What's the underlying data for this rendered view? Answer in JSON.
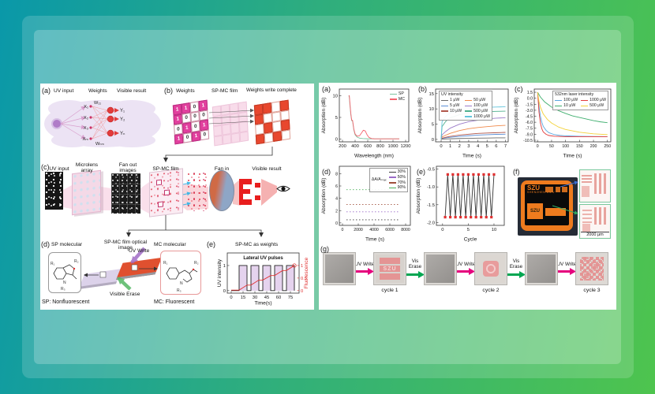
{
  "colors": {
    "bg_left": "#0a98a9",
    "bg_right": "#4ec44e",
    "uv_write_arrow": "#e5007d",
    "vis_erase_arrow": "#00a651",
    "weights_magenta": "#e2409e",
    "written_red": "#e8472e",
    "film_pink": "#f8dcea",
    "marker_red": "#e03131",
    "device_orange": "#ee7b1e"
  },
  "left_figure": {
    "a": {
      "tag": "(a)",
      "cols": [
        "UV input",
        "Weights",
        "Visible result"
      ],
      "inputs": [
        "X₁",
        "X₂",
        "X₃",
        "Xₘ"
      ],
      "outputs": [
        "Y₁",
        "Y₂",
        "Yₙ"
      ],
      "w_top": "W₁₁",
      "w_bottom": "Wₙₘ"
    },
    "b": {
      "tag": "(b)",
      "labels": [
        "Weights",
        "SP-MC film",
        "Weights write complete"
      ],
      "matrix": [
        [
          1,
          1,
          0,
          1
        ],
        [
          1,
          0,
          0,
          0
        ],
        [
          0,
          1,
          0,
          1
        ],
        [
          1,
          0,
          1,
          0
        ]
      ]
    },
    "c": {
      "tag": "(c)",
      "labels": [
        "UV input",
        "Microlens array",
        "Fan out images",
        "SP-MC film",
        "Fan in",
        "Visible result"
      ]
    },
    "d": {
      "tag": "(d)",
      "sp_label": "SP molecular",
      "film_label": "SP-MC film optical image",
      "mc_label": "MC molecular",
      "uv_write": "UV Write",
      "vis_erase": "Visible Erase",
      "note_sp": "SP: Nonfluorescent",
      "note_mc": "MC: Fluorescent",
      "r_sp": [
        "R₁",
        "R₂",
        "R₃"
      ],
      "r_mc": [
        "R₁",
        "R₂",
        "R₃"
      ],
      "atom_n": "N",
      "atom_o": "O"
    },
    "e": {
      "tag": "(e)",
      "title": "SP-MC as weights"
    }
  },
  "right_figure": {
    "a": {
      "tag": "(a)"
    },
    "b": {
      "tag": "(b)"
    },
    "c": {
      "tag": "(c)"
    },
    "d": {
      "tag": "(d)"
    },
    "e": {
      "tag": "(e)"
    },
    "f": {
      "tag": "(f)",
      "device_label": "SZU",
      "device_label2": "SZU",
      "scale_label": "2000 μm"
    },
    "g": {
      "tag": "(g)",
      "arrow_uv_label": "UV Write",
      "arrow_erase_label": "Vis Erase",
      "colors": {
        "uv": "#e5007d",
        "erase": "#00a651"
      },
      "steps": [
        {
          "kind": "square",
          "variant": "blank"
        },
        {
          "kind": "arrow",
          "type": "uv"
        },
        {
          "kind": "square",
          "variant": "szu",
          "text": "SZU",
          "caption": "cycle 1"
        },
        {
          "kind": "arrow",
          "type": "erase"
        },
        {
          "kind": "square",
          "variant": "blank"
        },
        {
          "kind": "arrow",
          "type": "uv"
        },
        {
          "kind": "square",
          "variant": "logo",
          "caption": "cycle 2"
        },
        {
          "kind": "arrow",
          "type": "erase"
        },
        {
          "kind": "square",
          "variant": "blank"
        },
        {
          "kind": "arrow",
          "type": "uv"
        },
        {
          "kind": "square",
          "variant": "qr",
          "caption": "cycle 3"
        }
      ]
    }
  },
  "chart_data": [
    {
      "id": "ra",
      "type": "line",
      "title": "",
      "xlabel": "Wavelength (nm)",
      "ylabel": "Absorption (dB)",
      "xlim": [
        150,
        1250
      ],
      "ylim": [
        -0.6,
        11.5
      ],
      "xticks": [
        200,
        400,
        600,
        800,
        1000,
        1200
      ],
      "yticks": [
        0,
        5,
        10
      ],
      "m": {
        "l": 24,
        "r": 4,
        "t": 6,
        "b": 21
      },
      "legend": {
        "pos": "tr",
        "cols": 1,
        "entries": [
          "SP",
          "MC"
        ],
        "box": false
      },
      "series": [
        {
          "name": "SP",
          "color": "#7cc4a0",
          "x": [
            300,
            308,
            318,
            332,
            345,
            360,
            380,
            400,
            430,
            470,
            520,
            600,
            700,
            800,
            900,
            1000,
            1100
          ],
          "y": [
            10,
            9.6,
            7.8,
            5.6,
            4.3,
            4.1,
            2.1,
            1.0,
            0.5,
            0.25,
            0.15,
            0.1,
            0.08,
            0.08,
            0.08,
            0.08,
            0.08
          ]
        },
        {
          "name": "MC",
          "color": "#f4636e",
          "x": [
            300,
            308,
            318,
            332,
            345,
            360,
            380,
            400,
            430,
            470,
            500,
            530,
            560,
            590,
            620,
            660,
            700,
            800,
            900,
            1000,
            1100
          ],
          "y": [
            10,
            10,
            8.2,
            5.9,
            4.4,
            4.3,
            2.3,
            1.2,
            0.7,
            0.8,
            1.4,
            2.05,
            1.9,
            1.0,
            0.4,
            0.15,
            0.1,
            0.08,
            0.08,
            0.08,
            0.08
          ]
        }
      ]
    },
    {
      "id": "rb",
      "type": "line",
      "title": "",
      "xlabel": "Time (s)",
      "ylabel": "Absorption (dB)",
      "xlim": [
        -0.6,
        7.3
      ],
      "ylim": [
        -0.8,
        16.5
      ],
      "xticks": [
        0,
        1,
        2,
        3,
        4,
        5,
        6,
        7
      ],
      "yticks": [
        0,
        5,
        10,
        15
      ],
      "m": {
        "l": 24,
        "r": 4,
        "t": 6,
        "b": 21
      },
      "legend": {
        "pos": "tl",
        "cols": 2,
        "title": "UV intensity",
        "box": true,
        "entries": [
          "1 μW",
          "50 μW",
          "5 μW",
          "100 μW",
          "10 μW",
          "500 μW",
          "",
          "1000 μW"
        ]
      },
      "series": [
        {
          "name": "1 μW",
          "color": "#6b6b6b",
          "x": [
            0,
            0.1,
            0.5,
            1,
            2,
            3,
            4,
            5,
            6,
            7
          ],
          "y": [
            0,
            0.1,
            0.15,
            0.2,
            0.3,
            0.35,
            0.4,
            0.45,
            0.5,
            0.5
          ]
        },
        {
          "name": "5 μW",
          "color": "#5b8fd6",
          "x": [
            0,
            0.1,
            0.5,
            1,
            2,
            3,
            4,
            5,
            6,
            7
          ],
          "y": [
            0,
            0.3,
            0.5,
            0.7,
            1.0,
            1.2,
            1.4,
            1.55,
            1.65,
            1.7
          ]
        },
        {
          "name": "10 μW",
          "color": "#b0564a",
          "x": [
            0,
            0.1,
            0.5,
            1,
            2,
            3,
            4,
            5,
            6,
            7
          ],
          "y": [
            0,
            0.4,
            0.7,
            1.0,
            1.4,
            1.7,
            1.95,
            2.1,
            2.2,
            2.3
          ]
        },
        {
          "name": "50 μW",
          "color": "#f08a4b",
          "x": [
            0,
            0.1,
            0.5,
            1,
            2,
            3,
            4,
            5,
            6,
            7
          ],
          "y": [
            0,
            0.8,
            1.4,
            2.0,
            2.9,
            3.5,
            3.9,
            4.2,
            4.45,
            4.6
          ]
        },
        {
          "name": "100 μW",
          "color": "#9b7bc8",
          "x": [
            0,
            0.1,
            0.5,
            1,
            2,
            3,
            4,
            5,
            6,
            7
          ],
          "y": [
            0,
            1.5,
            2.6,
            3.7,
            5.0,
            5.8,
            6.3,
            6.7,
            6.95,
            7.1
          ]
        },
        {
          "name": "500 μW",
          "color": "#4daf8d",
          "x": [
            0,
            0.1,
            0.5,
            1,
            2,
            3,
            4,
            5,
            6,
            7
          ],
          "y": [
            0,
            4.2,
            5.9,
            7.1,
            8.1,
            8.6,
            8.9,
            9.1,
            9.2,
            9.25
          ]
        },
        {
          "name": "1000 μW",
          "color": "#63c5dc",
          "x": [
            0,
            0.1,
            0.5,
            1,
            2,
            3,
            4,
            5,
            6,
            7
          ],
          "y": [
            0,
            5.8,
            7.6,
            8.7,
            9.6,
            10.0,
            10.3,
            10.5,
            10.6,
            10.7
          ]
        }
      ]
    },
    {
      "id": "rc",
      "type": "line",
      "title": "",
      "xlabel": "Time (s)",
      "ylabel": "Absorption (dB)",
      "xlim": [
        -12,
        262
      ],
      "ylim": [
        -10.9,
        2.3
      ],
      "xticks": [
        0,
        50,
        100,
        150,
        200,
        250
      ],
      "yticks": [
        1.5,
        0.0,
        -1.5,
        -3.0,
        -4.5,
        -6.0,
        -7.5,
        -9.0,
        -10.5
      ],
      "ytick_labels": [
        "1.5",
        "0.0",
        "-1.5",
        "-3.0",
        "-4.5",
        "-6.0",
        "-7.5",
        "-9.0",
        "-10.5"
      ],
      "tf": 5.2,
      "m": {
        "l": 27,
        "r": 4,
        "t": 6,
        "b": 21
      },
      "legend": {
        "pos": "tr",
        "cols": 2,
        "title": "532nm laser intensity",
        "box": true,
        "entries": [
          "100 μW",
          "1000 μW",
          "10 μW",
          "500 μW"
        ]
      },
      "series": [
        {
          "name": "100 μW",
          "color": "#5aa7e0",
          "x": [
            0,
            5,
            10,
            15,
            20,
            30,
            40,
            60,
            80,
            100,
            150,
            200,
            250
          ],
          "y": [
            1.5,
            -2.0,
            -4.5,
            -6.0,
            -7.0,
            -8.0,
            -8.6,
            -9.1,
            -9.3,
            -9.4,
            -9.5,
            -9.55,
            -9.6
          ]
        },
        {
          "name": "1000 μW",
          "color": "#e23b3b",
          "x": [
            0,
            5,
            10,
            15,
            20,
            30,
            40,
            60,
            80,
            100,
            150,
            200,
            250
          ],
          "y": [
            1.5,
            -3.5,
            -6.2,
            -7.6,
            -8.4,
            -9.0,
            -9.3,
            -9.5,
            -9.55,
            -9.6,
            -9.6,
            -9.6,
            -9.6
          ]
        },
        {
          "name": "10 μW",
          "color": "#3fae6e",
          "x": [
            0,
            10,
            25,
            50,
            75,
            100,
            125,
            150,
            175,
            200,
            225,
            250
          ],
          "y": [
            1.5,
            0.3,
            -0.9,
            -2.2,
            -3.1,
            -3.8,
            -4.4,
            -4.8,
            -5.2,
            -5.6,
            -5.9,
            -6.1
          ]
        },
        {
          "name": "500 μW",
          "color": "#f3d23a",
          "x": [
            0,
            5,
            10,
            20,
            35,
            50,
            75,
            100,
            150,
            200,
            250
          ],
          "y": [
            1.5,
            -0.8,
            -2.2,
            -3.9,
            -5.3,
            -6.2,
            -7.2,
            -7.8,
            -8.5,
            -8.9,
            -9.1
          ]
        }
      ]
    },
    {
      "id": "rd",
      "type": "line",
      "title": "",
      "xlabel": "Time (s)",
      "ylabel": "Absorption (dB)",
      "xlim": [
        -400,
        8600
      ],
      "ylim": [
        -0.4,
        9.2
      ],
      "xticks": [
        0,
        2000,
        4000,
        6000,
        8000
      ],
      "yticks": [
        0,
        2,
        4,
        6,
        8
      ],
      "tf": 5.2,
      "m": {
        "l": 24,
        "r": 4,
        "t": 6,
        "b": 21
      },
      "legend": {
        "pos": "tr",
        "cols": 1,
        "title": "ΔA/Aₘₐₓ",
        "titleSide": true,
        "box": true,
        "entries": [
          "30%",
          "50%",
          "70%",
          "90%"
        ]
      },
      "series": [
        {
          "name": "30%",
          "color": "#3a3a3a",
          "dash": "1.5,2.5",
          "x": [
            500,
            7200
          ],
          "y": [
            0.5,
            0.5
          ]
        },
        {
          "name": "50%",
          "color": "#9b6bc8",
          "dash": "1.5,2.5",
          "x": [
            500,
            7200
          ],
          "y": [
            1.8,
            1.8
          ]
        },
        {
          "name": "70%",
          "color": "#a0503c",
          "dash": "1.5,2.5",
          "x": [
            500,
            7200
          ],
          "y": [
            3.0,
            3.0
          ]
        },
        {
          "name": "90%",
          "color": "#4cb05a",
          "dash": "1.5,2.5",
          "x": [
            500,
            7200
          ],
          "y": [
            5.4,
            5.4
          ]
        }
      ]
    },
    {
      "id": "re",
      "type": "line",
      "title": "",
      "xlabel": "Cycle",
      "ylabel": "Absorption (dB)",
      "xlim": [
        -1.2,
        12
      ],
      "ylim": [
        -2.08,
        -0.42
      ],
      "xticks": [
        0,
        5,
        10
      ],
      "yticks": [
        -0.5,
        -1.0,
        -1.5,
        -2.0
      ],
      "ytick_labels": [
        "-0.5",
        "-1.0",
        "-1.5",
        "-2.0"
      ],
      "m": {
        "l": 27,
        "r": 5,
        "t": 6,
        "b": 21
      },
      "series": [
        {
          "name": "cycling",
          "color": "#333333",
          "marker": "square",
          "markerColor": "#e03131",
          "x": [
            0.5,
            1,
            1.5,
            2,
            2.5,
            3,
            3.5,
            4,
            4.5,
            5,
            5.5,
            6,
            6.5,
            7,
            7.5,
            8,
            8.5,
            9,
            9.5,
            10
          ],
          "y": [
            -1.85,
            -0.65,
            -1.85,
            -0.65,
            -1.85,
            -0.65,
            -1.85,
            -0.65,
            -1.85,
            -0.65,
            -1.85,
            -0.65,
            -1.85,
            -0.65,
            -1.85,
            -0.65,
            -1.85,
            -0.65,
            -1.85,
            -0.65
          ]
        }
      ]
    },
    {
      "id": "le",
      "type": "line",
      "title": "",
      "xlabel": "Time(s)",
      "ylabel": "UV  intensity",
      "ylabel2": "Fluorescence",
      "xlim": [
        -5,
        86
      ],
      "ylim": [
        -0.1,
        1.5
      ],
      "xticks": [
        0,
        15,
        30,
        45,
        60,
        75
      ],
      "yticks": [
        0,
        1
      ],
      "yticks2": [
        0,
        0.5,
        1
      ],
      "ytick2_labels": [
        "0",
        "0.5",
        "1"
      ],
      "y2color": "#e03131",
      "annotation": {
        "text": "Lateral UV pulses",
        "x": 0.5,
        "y": 0.92
      },
      "m": {
        "l": 14,
        "r": 13,
        "t": 5,
        "b": 16
      },
      "series": [
        {
          "name": "UV pulses",
          "color": "#222222",
          "fill": "rgba(170,110,200,0.30)",
          "x": [
            0,
            10,
            10,
            20,
            20,
            25,
            25,
            35,
            35,
            40,
            40,
            50,
            50,
            55,
            55,
            65,
            65,
            70,
            70,
            80,
            80
          ],
          "y": [
            0,
            0,
            1,
            1,
            0,
            0,
            1,
            1,
            0,
            0,
            1,
            1,
            0,
            0,
            1,
            1,
            0,
            0,
            1,
            1,
            0
          ]
        },
        {
          "name": "Fluorescence",
          "color": "#e03131",
          "marker_end": true,
          "x": [
            0,
            10,
            20,
            25,
            35,
            40,
            50,
            55,
            65,
            70,
            80
          ],
          "y": [
            0.02,
            0.02,
            0.22,
            0.22,
            0.42,
            0.42,
            0.6,
            0.6,
            0.8,
            0.8,
            1.0
          ]
        }
      ]
    }
  ]
}
